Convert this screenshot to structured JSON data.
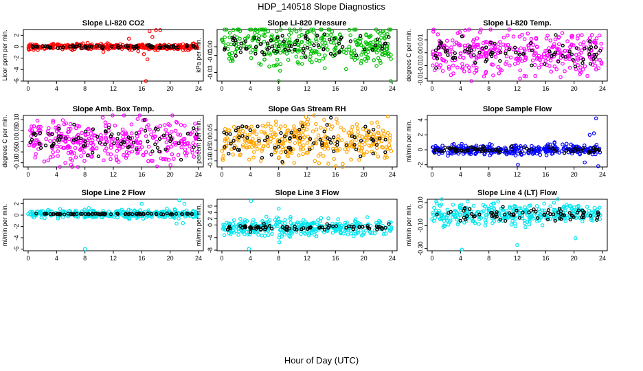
{
  "figure": {
    "title": "HDP_140518  Slope Diagnostics",
    "xlabel": "Hour of Day (UTC)"
  },
  "chart_data": [
    {
      "type": "scatter",
      "title": "Slope Li-820 CO2",
      "ylabel": "Licor ppm per min.",
      "color": "#ff0000",
      "xlim": [
        0,
        24
      ],
      "xticks": [
        0,
        4,
        8,
        12,
        16,
        20,
        24
      ],
      "ylim": [
        -6,
        3
      ],
      "yticks": [
        -6,
        -4,
        -2,
        0,
        2
      ],
      "center": 0,
      "spread": 0.25,
      "black_spread": 0.15,
      "outliers": [
        [
          14.2,
          1.4
        ],
        [
          15.5,
          -0.8
        ],
        [
          16.3,
          -1.3
        ],
        [
          16.6,
          -6.0
        ],
        [
          16.8,
          -2.2
        ],
        [
          17.1,
          2.7
        ],
        [
          18.0,
          2.9
        ],
        [
          18.6,
          2.9
        ],
        [
          17.5,
          1.7
        ],
        [
          10.6,
          -0.9
        ]
      ]
    },
    {
      "type": "scatter",
      "title": "Slope Li-820 Pressure",
      "ylabel": "kPa per min.",
      "color": "#00c000",
      "xlim": [
        0,
        24
      ],
      "xticks": [
        0,
        4,
        8,
        12,
        16,
        20,
        24
      ],
      "ylim": [
        -0.04,
        0.02
      ],
      "yticks": [
        -0.03,
        -0.01,
        0.0
      ],
      "center": 0.002,
      "spread": 0.012,
      "black_spread": 0.006,
      "outliers": [
        [
          8.0,
          -0.045
        ],
        [
          11.3,
          -0.02
        ],
        [
          14.5,
          -0.025
        ],
        [
          23.8,
          -0.04
        ],
        [
          8.2,
          -0.028
        ],
        [
          7.3,
          -0.022
        ]
      ]
    },
    {
      "type": "scatter",
      "title": "Slope Li-820 Temp.",
      "ylabel": "degrees C per min.",
      "color": "#ff00ff",
      "xlim": [
        0,
        24
      ],
      "xticks": [
        0,
        4,
        8,
        12,
        16,
        20,
        24
      ],
      "ylim": [
        -0.011,
        0.009
      ],
      "yticks": [
        -0.01,
        -0.005,
        0.0,
        0.005
      ],
      "center": 0.0,
      "spread": 0.0045,
      "black_spread": 0.0025,
      "outliers": [
        [
          12.4,
          -0.01
        ],
        [
          13.0,
          -0.009
        ],
        [
          3.0,
          -0.008
        ]
      ]
    },
    {
      "type": "scatter",
      "title": "Slope Amb. Box Temp.",
      "ylabel": "degrees C per min.",
      "color": "#ff00ff",
      "xlim": [
        0,
        24
      ],
      "xticks": [
        0,
        4,
        8,
        12,
        16,
        20,
        24
      ],
      "ylim": [
        -0.12,
        0.12
      ],
      "yticks": [
        -0.1,
        -0.05,
        0.0,
        0.05,
        0.1
      ],
      "center": 0.0,
      "spread": 0.05,
      "black_spread": 0.035,
      "outliers": [
        [
          13.5,
          0.12
        ],
        [
          10.5,
          0.11
        ]
      ]
    },
    {
      "type": "scatter",
      "title": "Slope Gas Stream RH",
      "ylabel": "percent per min.",
      "color": "#ffa500",
      "xlim": [
        0,
        24
      ],
      "xticks": [
        0,
        4,
        8,
        12,
        16,
        20,
        24
      ],
      "ylim": [
        -0.13,
        0.12
      ],
      "yticks": [
        -0.1,
        -0.05,
        0.0,
        0.05
      ],
      "center": 0.0,
      "spread": 0.05,
      "black_spread": 0.04,
      "outliers": [
        [
          13.0,
          0.12
        ],
        [
          17.0,
          -0.13
        ]
      ]
    },
    {
      "type": "scatter",
      "title": "Slope Sample Flow",
      "ylabel": "ml/min per min.",
      "color": "#0000ff",
      "xlim": [
        0,
        24
      ],
      "xticks": [
        0,
        4,
        8,
        12,
        16,
        20,
        24
      ],
      "ylim": [
        -2.3,
        4.6
      ],
      "yticks": [
        -2,
        0,
        2,
        4
      ],
      "center": 0.0,
      "spread": 0.35,
      "black_spread": 0.2,
      "outliers": [
        [
          23.1,
          4.2
        ],
        [
          21.5,
          -1.7
        ],
        [
          23.4,
          -2.2
        ],
        [
          12.1,
          -2.0
        ],
        [
          22.2,
          2.0
        ],
        [
          22.8,
          2.2
        ]
      ]
    },
    {
      "type": "scatter",
      "title": "Slope Line 2 Flow",
      "ylabel": "ml/min per min.",
      "color": "#00e5ee",
      "xlim": [
        0,
        24
      ],
      "xticks": [
        0,
        4,
        8,
        12,
        16,
        20,
        24
      ],
      "ylim": [
        -6.3,
        2.8
      ],
      "yticks": [
        -6,
        -4,
        -2,
        0,
        2
      ],
      "center": 0.2,
      "spread": 0.35,
      "black_spread": 0.05,
      "outliers": [
        [
          8.0,
          -6.0
        ],
        [
          21.3,
          2.6
        ],
        [
          22.0,
          2.0
        ],
        [
          16.0,
          2.0
        ],
        [
          20.9,
          -1.5
        ],
        [
          21.8,
          -1.4
        ]
      ]
    },
    {
      "type": "scatter",
      "title": "Slope Line 3 Flow",
      "ylabel": "ml/min per min.",
      "color": "#00e5ee",
      "xlim": [
        0,
        24
      ],
      "xticks": [
        0,
        4,
        8,
        12,
        16,
        20,
        24
      ],
      "ylim": [
        -8.2,
        8.2
      ],
      "yticks": [
        -8,
        -4,
        0,
        2,
        4,
        6
      ],
      "center": -0.8,
      "spread": 1.4,
      "black_spread": 0.5,
      "outliers": [
        [
          4.1,
          7.6
        ],
        [
          8.0,
          5.2
        ],
        [
          3.8,
          -7.6
        ],
        [
          8.1,
          -5.5
        ],
        [
          20.5,
          2.5
        ]
      ]
    },
    {
      "type": "scatter",
      "title": "Slope Line 4 (LT) Flow",
      "ylabel": "ml/min per min.",
      "color": "#00e5ee",
      "xlim": [
        0,
        24
      ],
      "xticks": [
        0,
        4,
        8,
        12,
        16,
        20,
        24
      ],
      "ylim": [
        -0.32,
        0.13
      ],
      "yticks": [
        -0.3,
        -0.1,
        0.1
      ],
      "center": 0.0,
      "spread": 0.045,
      "black_spread": 0.03,
      "outliers": [
        [
          4.2,
          -0.31
        ],
        [
          12.0,
          -0.27
        ],
        [
          20.2,
          -0.21
        ],
        [
          5.0,
          0.11
        ],
        [
          9.3,
          0.11
        ]
      ]
    }
  ]
}
